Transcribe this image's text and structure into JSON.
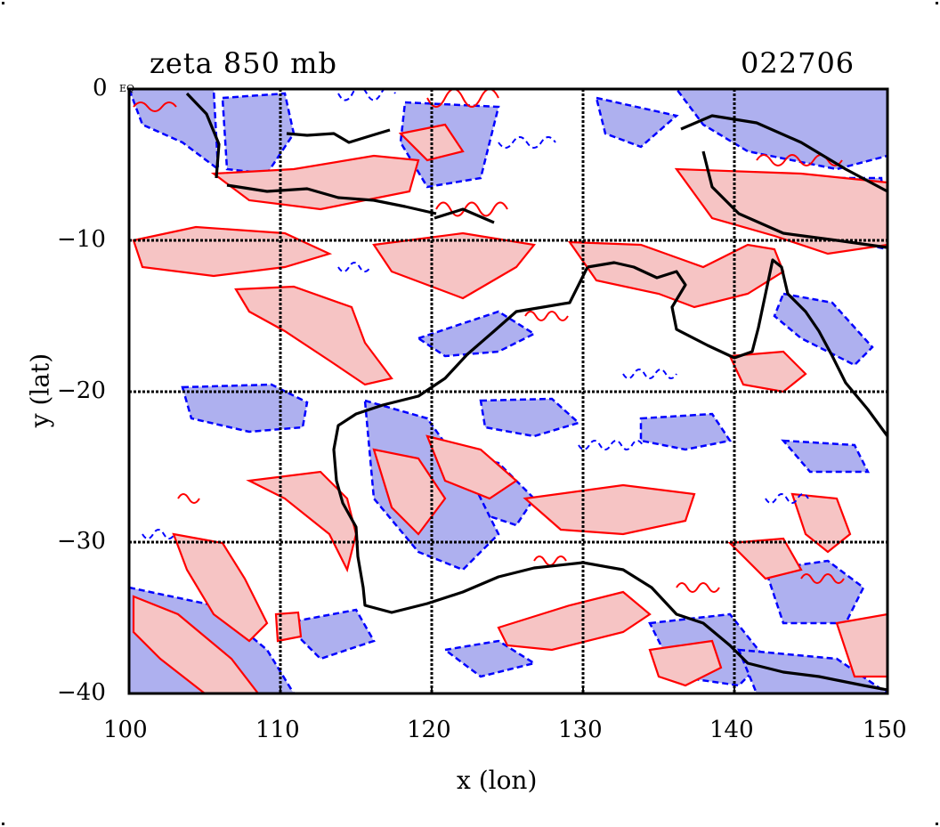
{
  "header": {
    "title": "zeta 850 mb",
    "timestamp": "022706"
  },
  "map": {
    "corner_label": "EQ",
    "x_ticks": [
      "100",
      "110",
      "120",
      "130",
      "140",
      "150"
    ],
    "y_ticks": [
      "0",
      "−10",
      "−20",
      "−30",
      "−40"
    ],
    "x_label": "x (lon)",
    "y_label": "y (lat)",
    "lon_range": [
      100,
      150
    ],
    "lat_range": [
      -40,
      0
    ],
    "grid_interval_deg": 10,
    "colors": {
      "positive_contour": "#ff0000",
      "positive_fill": "#f6c4c4",
      "negative_contour": "#0000ff",
      "negative_fill": "#aeb0ef",
      "coastline": "#000000",
      "grid": "#000000"
    }
  }
}
